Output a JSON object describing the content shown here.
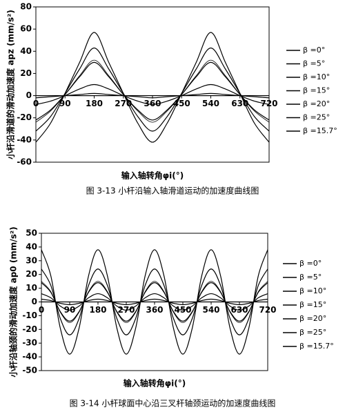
{
  "chart_data": [
    {
      "type": "line",
      "y_label": "小杆沿滑道的滑动加速度 apz (mm/s²)",
      "x_label": "输入轴转角φi(°)",
      "caption": "图 3-13 小杆沿输入轴滑道运动的加速度曲线图",
      "x": [
        0,
        45,
        90,
        135,
        180,
        225,
        270,
        315,
        360,
        405,
        450,
        495,
        540,
        585,
        630,
        675,
        720
      ],
      "xlim": [
        0,
        720
      ],
      "xticks": [
        0,
        90,
        180,
        270,
        360,
        450,
        540,
        630,
        720
      ],
      "ylim": [
        -60,
        80
      ],
      "yticks": [
        -60,
        -40,
        -20,
        0,
        20,
        40,
        60,
        80
      ],
      "series": [
        {
          "name": "β =0°",
          "color": "#000000",
          "values": [
            0,
            0,
            0,
            0,
            0,
            0,
            0,
            0,
            0,
            0,
            0,
            0,
            0,
            0,
            0,
            0,
            0
          ]
        },
        {
          "name": "β =5°",
          "color": "#000000",
          "values": [
            -2,
            -1,
            0,
            1,
            2,
            1,
            0,
            -1,
            -2,
            -1,
            0,
            1,
            2,
            1,
            0,
            -1,
            -2
          ]
        },
        {
          "name": "β =10°",
          "color": "#000000",
          "values": [
            -8,
            -5,
            0,
            6,
            10,
            6,
            0,
            -5,
            -8,
            -5,
            0,
            6,
            10,
            6,
            0,
            -5,
            -8
          ]
        },
        {
          "name": "β =15°",
          "color": "#000000",
          "values": [
            -22,
            -13,
            1,
            17,
            30,
            17,
            1,
            -13,
            -22,
            -13,
            1,
            17,
            30,
            17,
            1,
            -13,
            -22
          ]
        },
        {
          "name": "β =20°",
          "color": "#000000",
          "values": [
            -32,
            -19,
            2,
            24,
            43,
            24,
            2,
            -19,
            -32,
            -19,
            2,
            24,
            43,
            24,
            2,
            -19,
            -32
          ]
        },
        {
          "name": "β =25°",
          "color": "#000000",
          "values": [
            -42,
            -25,
            2,
            30,
            57,
            30,
            2,
            -25,
            -42,
            -25,
            2,
            30,
            57,
            30,
            2,
            -25,
            -42
          ]
        },
        {
          "name": "β =15.7°",
          "color": "#000000",
          "values": [
            -24,
            -14,
            1,
            18,
            32,
            18,
            1,
            -14,
            -24,
            -14,
            1,
            18,
            32,
            18,
            1,
            -14,
            -24
          ]
        }
      ]
    },
    {
      "type": "line",
      "y_label": "小杆沿轴颈的滑动加速度 ap0 (mm/s²)",
      "x_label": "输入轴转角φi(°)",
      "caption": "图 3-14 小杆球面中心沿三叉杆轴颈运动的加速度曲线图",
      "x": [
        0,
        30,
        60,
        90,
        120,
        150,
        180,
        210,
        240,
        270,
        300,
        330,
        360,
        390,
        420,
        450,
        480,
        510,
        540,
        570,
        600,
        630,
        660,
        690,
        720
      ],
      "xlim": [
        0,
        720
      ],
      "xticks": [
        0,
        90,
        180,
        270,
        360,
        450,
        540,
        630,
        720
      ],
      "ylim": [
        -50,
        50
      ],
      "yticks": [
        -50,
        -40,
        -30,
        -20,
        -10,
        0,
        10,
        20,
        30,
        40,
        50
      ],
      "series": [
        {
          "name": "β =0°",
          "color": "#000000",
          "values": [
            0,
            0,
            0,
            0,
            0,
            0,
            0,
            0,
            0,
            0,
            0,
            0,
            0,
            0,
            0,
            0,
            0,
            0,
            0,
            0,
            0,
            0,
            0,
            0,
            0
          ]
        },
        {
          "name": "β =5°",
          "color": "#000000",
          "values": [
            2,
            1,
            -1,
            -2,
            -1,
            1,
            2,
            1,
            -1,
            -2,
            -1,
            1,
            2,
            1,
            -1,
            -2,
            -1,
            1,
            2,
            1,
            -1,
            -2,
            -1,
            1,
            2
          ]
        },
        {
          "name": "β =10°",
          "color": "#000000",
          "values": [
            6,
            3,
            -3,
            -6,
            -3,
            3,
            6,
            3,
            -3,
            -6,
            -3,
            3,
            6,
            3,
            -3,
            -6,
            -3,
            3,
            6,
            3,
            -3,
            -6,
            -3,
            3,
            6
          ]
        },
        {
          "name": "β =15°",
          "color": "#000000",
          "values": [
            14,
            7,
            -7,
            -14,
            -7,
            7,
            14,
            7,
            -7,
            -14,
            -7,
            7,
            14,
            7,
            -7,
            -14,
            -7,
            7,
            14,
            7,
            -7,
            -14,
            -7,
            7,
            14
          ]
        },
        {
          "name": "β =20°",
          "color": "#000000",
          "values": [
            24,
            12,
            -12,
            -24,
            -12,
            12,
            24,
            12,
            -12,
            -24,
            -12,
            12,
            24,
            12,
            -12,
            -24,
            -12,
            12,
            24,
            12,
            -12,
            -24,
            -12,
            12,
            24
          ]
        },
        {
          "name": "β =25°",
          "color": "#000000",
          "values": [
            38,
            19,
            -19,
            -38,
            -19,
            19,
            38,
            19,
            -19,
            -38,
            -19,
            19,
            38,
            19,
            -19,
            -38,
            -19,
            19,
            38,
            19,
            -19,
            -38,
            -19,
            19,
            38
          ]
        },
        {
          "name": "β =15.7°",
          "color": "#000000",
          "values": [
            15,
            7.5,
            -7.5,
            -15,
            -7.5,
            7.5,
            15,
            7.5,
            -7.5,
            -15,
            -7.5,
            7.5,
            15,
            7.5,
            -7.5,
            -15,
            -7.5,
            7.5,
            15,
            7.5,
            -7.5,
            -15,
            -7.5,
            7.5,
            15
          ]
        }
      ]
    }
  ]
}
